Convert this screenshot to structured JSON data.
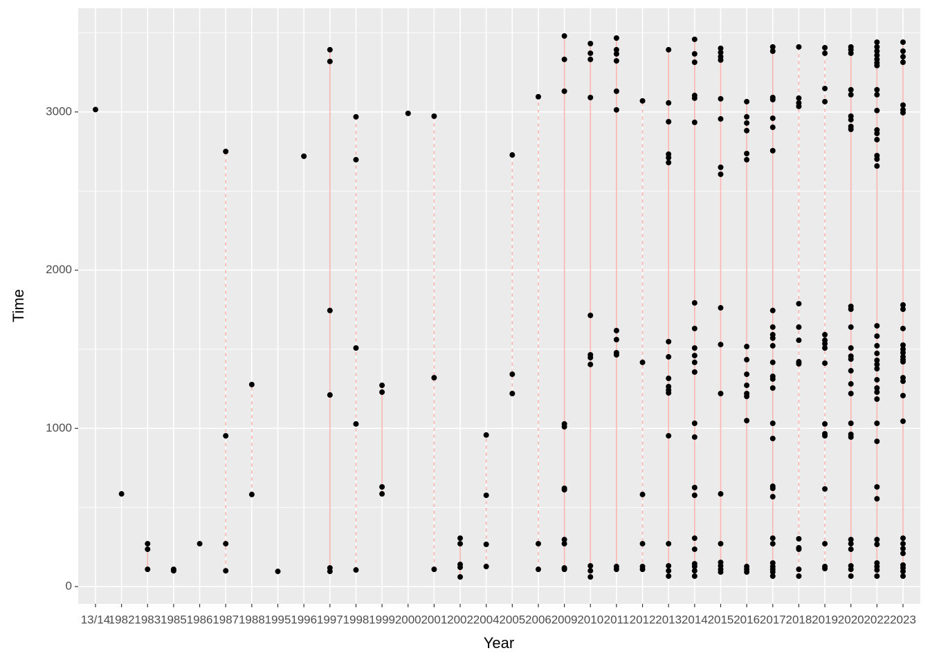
{
  "chart_data": {
    "type": "strip",
    "x_label": "Year",
    "y_label": "Time",
    "categories": [
      "13/14",
      "1982",
      "1983",
      "1985",
      "1986",
      "1987",
      "1988",
      "1995",
      "1996",
      "1997",
      "1998",
      "1999",
      "2000",
      "2001",
      "2002",
      "2004",
      "2005",
      "2006",
      "2009",
      "2010",
      "2011",
      "2012",
      "2013",
      "2014",
      "2015",
      "2016",
      "2017",
      "2018",
      "2019",
      "2020",
      "2022",
      "2023"
    ],
    "values": [
      [
        3015
      ],
      [
        586
      ],
      [
        271,
        236,
        109
      ],
      [
        109,
        100
      ],
      [
        271
      ],
      [
        2750,
        953,
        271,
        100
      ],
      [
        1277,
        582
      ],
      [
        96
      ],
      [
        2720
      ],
      [
        3393,
        3319,
        1745,
        1211,
        118,
        96
      ],
      [
        2969,
        2698,
        1508,
        1028,
        105
      ],
      [
        1272,
        1229,
        630,
        586
      ],
      [
        2991
      ],
      [
        2973,
        1320,
        109
      ],
      [
        306,
        271,
        140,
        122,
        61
      ],
      [
        958,
        577,
        267,
        127
      ],
      [
        2728,
        1342,
        1220
      ],
      [
        3096,
        271,
        109
      ],
      [
        3480,
        3332,
        3131,
        1028,
        1010,
        621,
        612,
        297,
        271,
        118,
        109
      ],
      [
        3432,
        3371,
        3332,
        3091,
        1714,
        1465,
        1447,
        1404,
        131,
        100,
        61
      ],
      [
        3467,
        3393,
        3367,
        3323,
        3131,
        3013,
        1618,
        1561,
        1478,
        1465,
        127,
        109
      ],
      [
        3070,
        1417,
        582,
        271,
        127,
        109
      ],
      [
        3393,
        3057,
        2938,
        2733,
        2711,
        2680,
        1548,
        1452,
        1316,
        1264,
        1242,
        1224,
        953,
        271,
        131,
        100,
        66
      ],
      [
        3459,
        3367,
        3314,
        3104,
        3087,
        2934,
        1793,
        1631,
        1508,
        1460,
        1417,
        1356,
        1032,
        945,
        626,
        577,
        306,
        236,
        144,
        127,
        100,
        66
      ],
      [
        3402,
        3376,
        3349,
        3328,
        3083,
        2956,
        2650,
        2606,
        1762,
        1530,
        1220,
        586,
        271,
        153,
        131,
        109,
        92
      ],
      [
        3065,
        2969,
        2930,
        2882,
        2737,
        2698,
        1517,
        1434,
        1342,
        1272,
        1220,
        1202,
        1049,
        127,
        109,
        92
      ],
      [
        3411,
        3384,
        3091,
        3078,
        2960,
        2903,
        2755,
        1745,
        1640,
        1592,
        1570,
        1522,
        1417,
        1329,
        1312,
        1255,
        1032,
        936,
        634,
        621,
        568,
        306,
        271,
        149,
        127,
        109,
        92,
        66
      ],
      [
        3411,
        3087,
        3057,
        3035,
        1788,
        1640,
        1557,
        1421,
        1408,
        302,
        245,
        236,
        109,
        66
      ],
      [
        3406,
        3371,
        3148,
        3065,
        1592,
        1557,
        1535,
        1508,
        1412,
        1028,
        966,
        953,
        617,
        271,
        127,
        114
      ],
      [
        3411,
        3393,
        3371,
        3140,
        3109,
        2973,
        2951,
        2908,
        2890,
        1771,
        1753,
        1640,
        1508,
        1456,
        1438,
        1364,
        1281,
        1220,
        1032,
        962,
        945,
        297,
        271,
        236,
        131,
        109,
        66
      ],
      [
        3441,
        3411,
        3384,
        3358,
        3332,
        3310,
        3293,
        3140,
        3109,
        3009,
        2886,
        2864,
        2825,
        2724,
        2702,
        2658,
        1648,
        1583,
        1522,
        1474,
        1430,
        1404,
        1377,
        1307,
        1255,
        1229,
        1185,
        1032,
        918,
        630,
        555,
        297,
        267,
        149,
        127,
        105,
        66
      ],
      [
        3441,
        3384,
        3349,
        3314,
        3043,
        3013,
        2995,
        1780,
        1753,
        1631,
        1526,
        1500,
        1478,
        1452,
        1434,
        1421,
        1320,
        1298,
        1207,
        1045,
        306,
        271,
        240,
        210,
        136,
        118,
        96,
        66
      ]
    ],
    "line_styles": [
      "solid",
      "solid",
      "solid",
      "solid",
      "solid",
      "dashed",
      "dashed",
      "solid",
      "solid",
      "solid",
      "dashed",
      "solid",
      "solid",
      "dashed",
      "solid",
      "dashed",
      "dashed",
      "dashed",
      "solid",
      "solid",
      "solid",
      "dashed",
      "solid",
      "solid",
      "solid",
      "solid",
      "solid",
      "dashed",
      "dashed",
      "solid",
      "solid",
      "solid"
    ],
    "line_color": "#f8766d",
    "point_color": "#000000",
    "ylim": [
      -109,
      3655
    ],
    "yticks": [
      0,
      1000,
      2000,
      3000
    ],
    "grid": true
  }
}
